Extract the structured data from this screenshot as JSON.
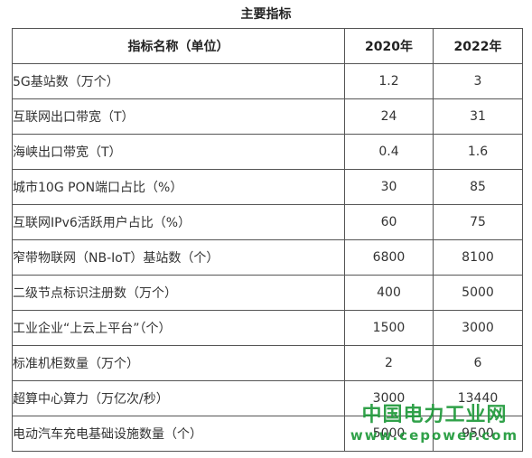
{
  "caption": "主要指标",
  "table": {
    "headers": [
      "指标名称（单位）",
      "2020年",
      "2022年"
    ],
    "rows": [
      [
        "5G基站数（万个）",
        "1.2",
        "3"
      ],
      [
        "互联网出口带宽（T）",
        "24",
        "31"
      ],
      [
        "海峡出口带宽（T）",
        "0.4",
        "1.6"
      ],
      [
        "城市10G PON端口占比（%）",
        "30",
        "85"
      ],
      [
        "互联网IPv6活跃用户占比（%）",
        "60",
        "75"
      ],
      [
        "窄带物联网（NB-IoT）基站数（个）",
        "6800",
        "8100"
      ],
      [
        "二级节点标识注册数（万个）",
        "400",
        "5000"
      ],
      [
        "工业企业“上云上平台”（个）",
        "1500",
        "3000"
      ],
      [
        "标准机柜数量（万个）",
        "2",
        "6"
      ],
      [
        "超算中心算力（万亿次/秒）",
        "3000",
        "13440"
      ],
      [
        "电动汽车充电基础设施数量（个）",
        "5000",
        "9500"
      ]
    ]
  },
  "watermark": {
    "text": "中国电力工业网",
    "url": "www.cepower.com",
    "color": "#1f9a3a"
  }
}
